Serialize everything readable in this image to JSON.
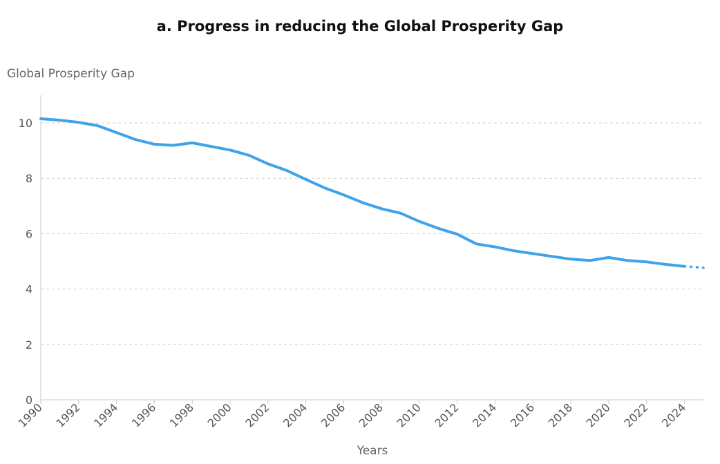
{
  "chart_data": {
    "type": "line",
    "title": "a. Progress in reducing the Global Prosperity Gap",
    "xlabel": "Years",
    "ylabel": "Global Prosperity Gap",
    "xlim": [
      1990,
      2025
    ],
    "ylim": [
      0,
      11
    ],
    "x_ticks": [
      1990,
      1992,
      1994,
      1996,
      1998,
      2000,
      2002,
      2004,
      2006,
      2008,
      2010,
      2012,
      2014,
      2016,
      2018,
      2020,
      2022,
      2024
    ],
    "x_tick_labels": [
      "1990",
      "1992",
      "1994",
      "1996",
      "1998",
      "2000",
      "2002",
      "2004",
      "2006",
      "2008",
      "2010",
      "2012",
      "2014",
      "2016",
      "2018",
      "2020",
      "2022",
      "2024"
    ],
    "y_ticks": [
      0,
      2,
      4,
      6,
      8,
      10
    ],
    "y_tick_labels": [
      "0",
      "2",
      "4",
      "6",
      "8",
      "10"
    ],
    "grid": {
      "horizontal": true,
      "vertical": false,
      "style": "dashed"
    },
    "legend": "none",
    "series": [
      {
        "style": "solid",
        "color": "#3ea3e8",
        "x": [
          1990,
          1991,
          1992,
          1993,
          1994,
          1995,
          1996,
          1997,
          1998,
          1999,
          2000,
          2001,
          2002,
          2003,
          2004,
          2005,
          2006,
          2007,
          2008,
          2009,
          2010,
          2011,
          2012,
          2013,
          2014,
          2015,
          2016,
          2017,
          2018,
          2019,
          2020,
          2021,
          2022,
          2023,
          2024
        ],
        "values": [
          10.15,
          10.1,
          10.02,
          9.9,
          9.65,
          9.4,
          9.23,
          9.19,
          9.28,
          9.15,
          9.02,
          8.83,
          8.52,
          8.28,
          7.96,
          7.65,
          7.4,
          7.12,
          6.9,
          6.74,
          6.44,
          6.19,
          5.98,
          5.63,
          5.52,
          5.38,
          5.28,
          5.18,
          5.08,
          5.03,
          5.14,
          5.03,
          4.98,
          4.89,
          4.82
        ]
      },
      {
        "style": "dotted",
        "color": "#3ea3e8",
        "x": [
          2024,
          2025
        ],
        "values": [
          4.82,
          4.77
        ]
      }
    ]
  }
}
